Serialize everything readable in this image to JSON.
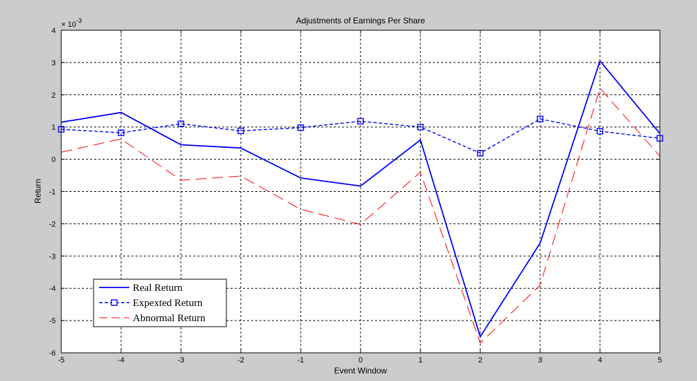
{
  "chart_data": {
    "type": "line",
    "title": "Adjustments of Earnings Per Share",
    "xlabel": "Event Window",
    "ylabel": "Return",
    "y_exponent_label": "× 10",
    "y_exponent": "-3",
    "x": [
      -5,
      -4,
      -3,
      -2,
      -1,
      0,
      1,
      2,
      3,
      4,
      5
    ],
    "xlim": [
      -5,
      5
    ],
    "ylim": [
      -6,
      4
    ],
    "x_ticks": [
      "-5",
      "-4",
      "-3",
      "-2",
      "-1",
      "0",
      "1",
      "2",
      "3",
      "4",
      "5"
    ],
    "y_ticks": [
      "-6",
      "-5",
      "-4",
      "-3",
      "-2",
      "-1",
      "0",
      "1",
      "2",
      "3",
      "4"
    ],
    "grid": true,
    "legend_position": "bottom-left",
    "series": [
      {
        "name": "Real Return",
        "color": "#0000ff",
        "style": "solid",
        "marker": "none",
        "values": [
          1.15,
          1.45,
          0.45,
          0.35,
          -0.58,
          -0.83,
          0.6,
          -5.5,
          -2.6,
          3.05,
          0.8
        ]
      },
      {
        "name": "Expexted Return",
        "color": "#0000ff",
        "style": "dashed",
        "marker": "square",
        "values": [
          0.93,
          0.82,
          1.1,
          0.88,
          0.98,
          1.18,
          1.0,
          0.19,
          1.25,
          0.87,
          0.65
        ]
      },
      {
        "name": "Abnormal Return",
        "color": "#ff0000",
        "style": "longdash",
        "marker": "none",
        "values": [
          0.22,
          0.63,
          -0.65,
          -0.52,
          -1.55,
          -2.02,
          -0.4,
          -5.7,
          -3.9,
          2.2,
          0.1
        ]
      }
    ]
  }
}
